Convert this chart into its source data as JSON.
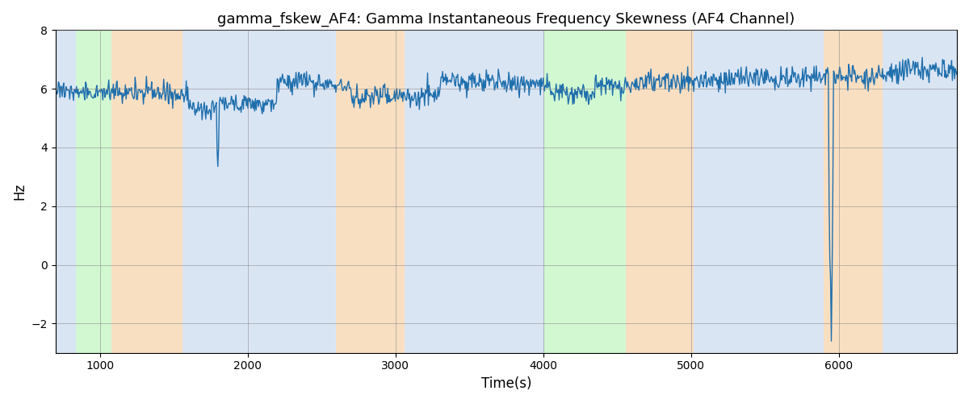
{
  "title": "gamma_fskew_AF4: Gamma Instantaneous Frequency Skewness (AF4 Channel)",
  "xlabel": "Time(s)",
  "ylabel": "Hz",
  "xlim": [
    700,
    6800
  ],
  "ylim": [
    -3,
    8
  ],
  "yticks": [
    -2,
    0,
    2,
    4,
    6,
    8
  ],
  "bg_color": "#ffffff",
  "regions": [
    {
      "xmin": 700,
      "xmax": 840,
      "color": "#aec6e8",
      "alpha": 0.45
    },
    {
      "xmin": 840,
      "xmax": 1080,
      "color": "#90ee90",
      "alpha": 0.4
    },
    {
      "xmin": 1080,
      "xmax": 1560,
      "color": "#f5c590",
      "alpha": 0.55
    },
    {
      "xmin": 1560,
      "xmax": 2600,
      "color": "#aec6e8",
      "alpha": 0.45
    },
    {
      "xmin": 2600,
      "xmax": 3060,
      "color": "#f5c590",
      "alpha": 0.55
    },
    {
      "xmin": 3060,
      "xmax": 4010,
      "color": "#aec6e8",
      "alpha": 0.45
    },
    {
      "xmin": 4010,
      "xmax": 4560,
      "color": "#90ee90",
      "alpha": 0.4
    },
    {
      "xmin": 4560,
      "xmax": 5020,
      "color": "#f5c590",
      "alpha": 0.55
    },
    {
      "xmin": 5020,
      "xmax": 5900,
      "color": "#aec6e8",
      "alpha": 0.45
    },
    {
      "xmin": 5900,
      "xmax": 6300,
      "color": "#f5c590",
      "alpha": 0.55
    },
    {
      "xmin": 6300,
      "xmax": 6800,
      "color": "#aec6e8",
      "alpha": 0.45
    }
  ],
  "line_color": "#1f6fad",
  "line_width": 1.0,
  "mean_value": 6.2,
  "seed": 42,
  "n_points": 1200,
  "x_start": 700,
  "x_end": 6800
}
